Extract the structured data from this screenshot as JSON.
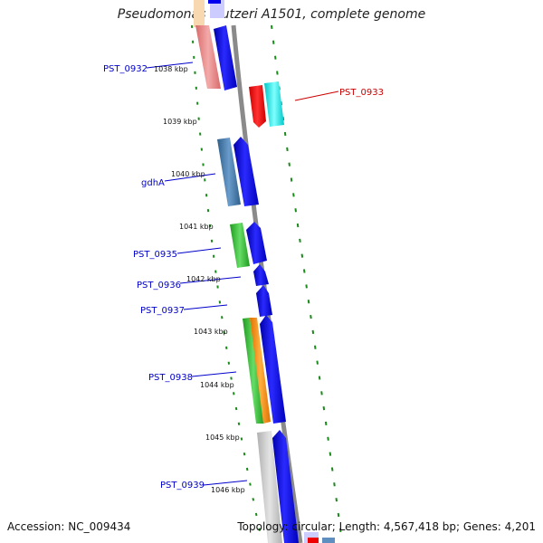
{
  "title": "Pseudomonas stutzeri A1501, complete genome",
  "footer": {
    "accession": "Accession: NC_009434",
    "summary": "Topology: circular; Length: 4,567,418 bp; Genes: 4,201"
  },
  "colors": {
    "backbone": "#8a8a8a",
    "gc_dots": "#1a8a1a",
    "gene_blue": "#0000ee",
    "gene_red": "#ee0000",
    "gene_cyan": "#00e5e5",
    "label_blue": "#0000cc",
    "label_red": "#cc0000"
  },
  "ticks": [
    "1038 kbp",
    "1039 kbp",
    "1040 kbp",
    "1041 kbp",
    "1042 kbp",
    "1043 kbp",
    "1044 kbp",
    "1045 kbp",
    "1046 kbp"
  ],
  "gene_labels": [
    {
      "text": "PST_0932",
      "color": "blue"
    },
    {
      "text": "PST_0933",
      "color": "red"
    },
    {
      "text": "gdhA",
      "color": "blue"
    },
    {
      "text": "PST_0935",
      "color": "blue"
    },
    {
      "text": "PST_0936",
      "color": "blue"
    },
    {
      "text": "PST_0937",
      "color": "blue"
    },
    {
      "text": "PST_0938",
      "color": "blue"
    },
    {
      "text": "PST_0939",
      "color": "blue"
    }
  ]
}
